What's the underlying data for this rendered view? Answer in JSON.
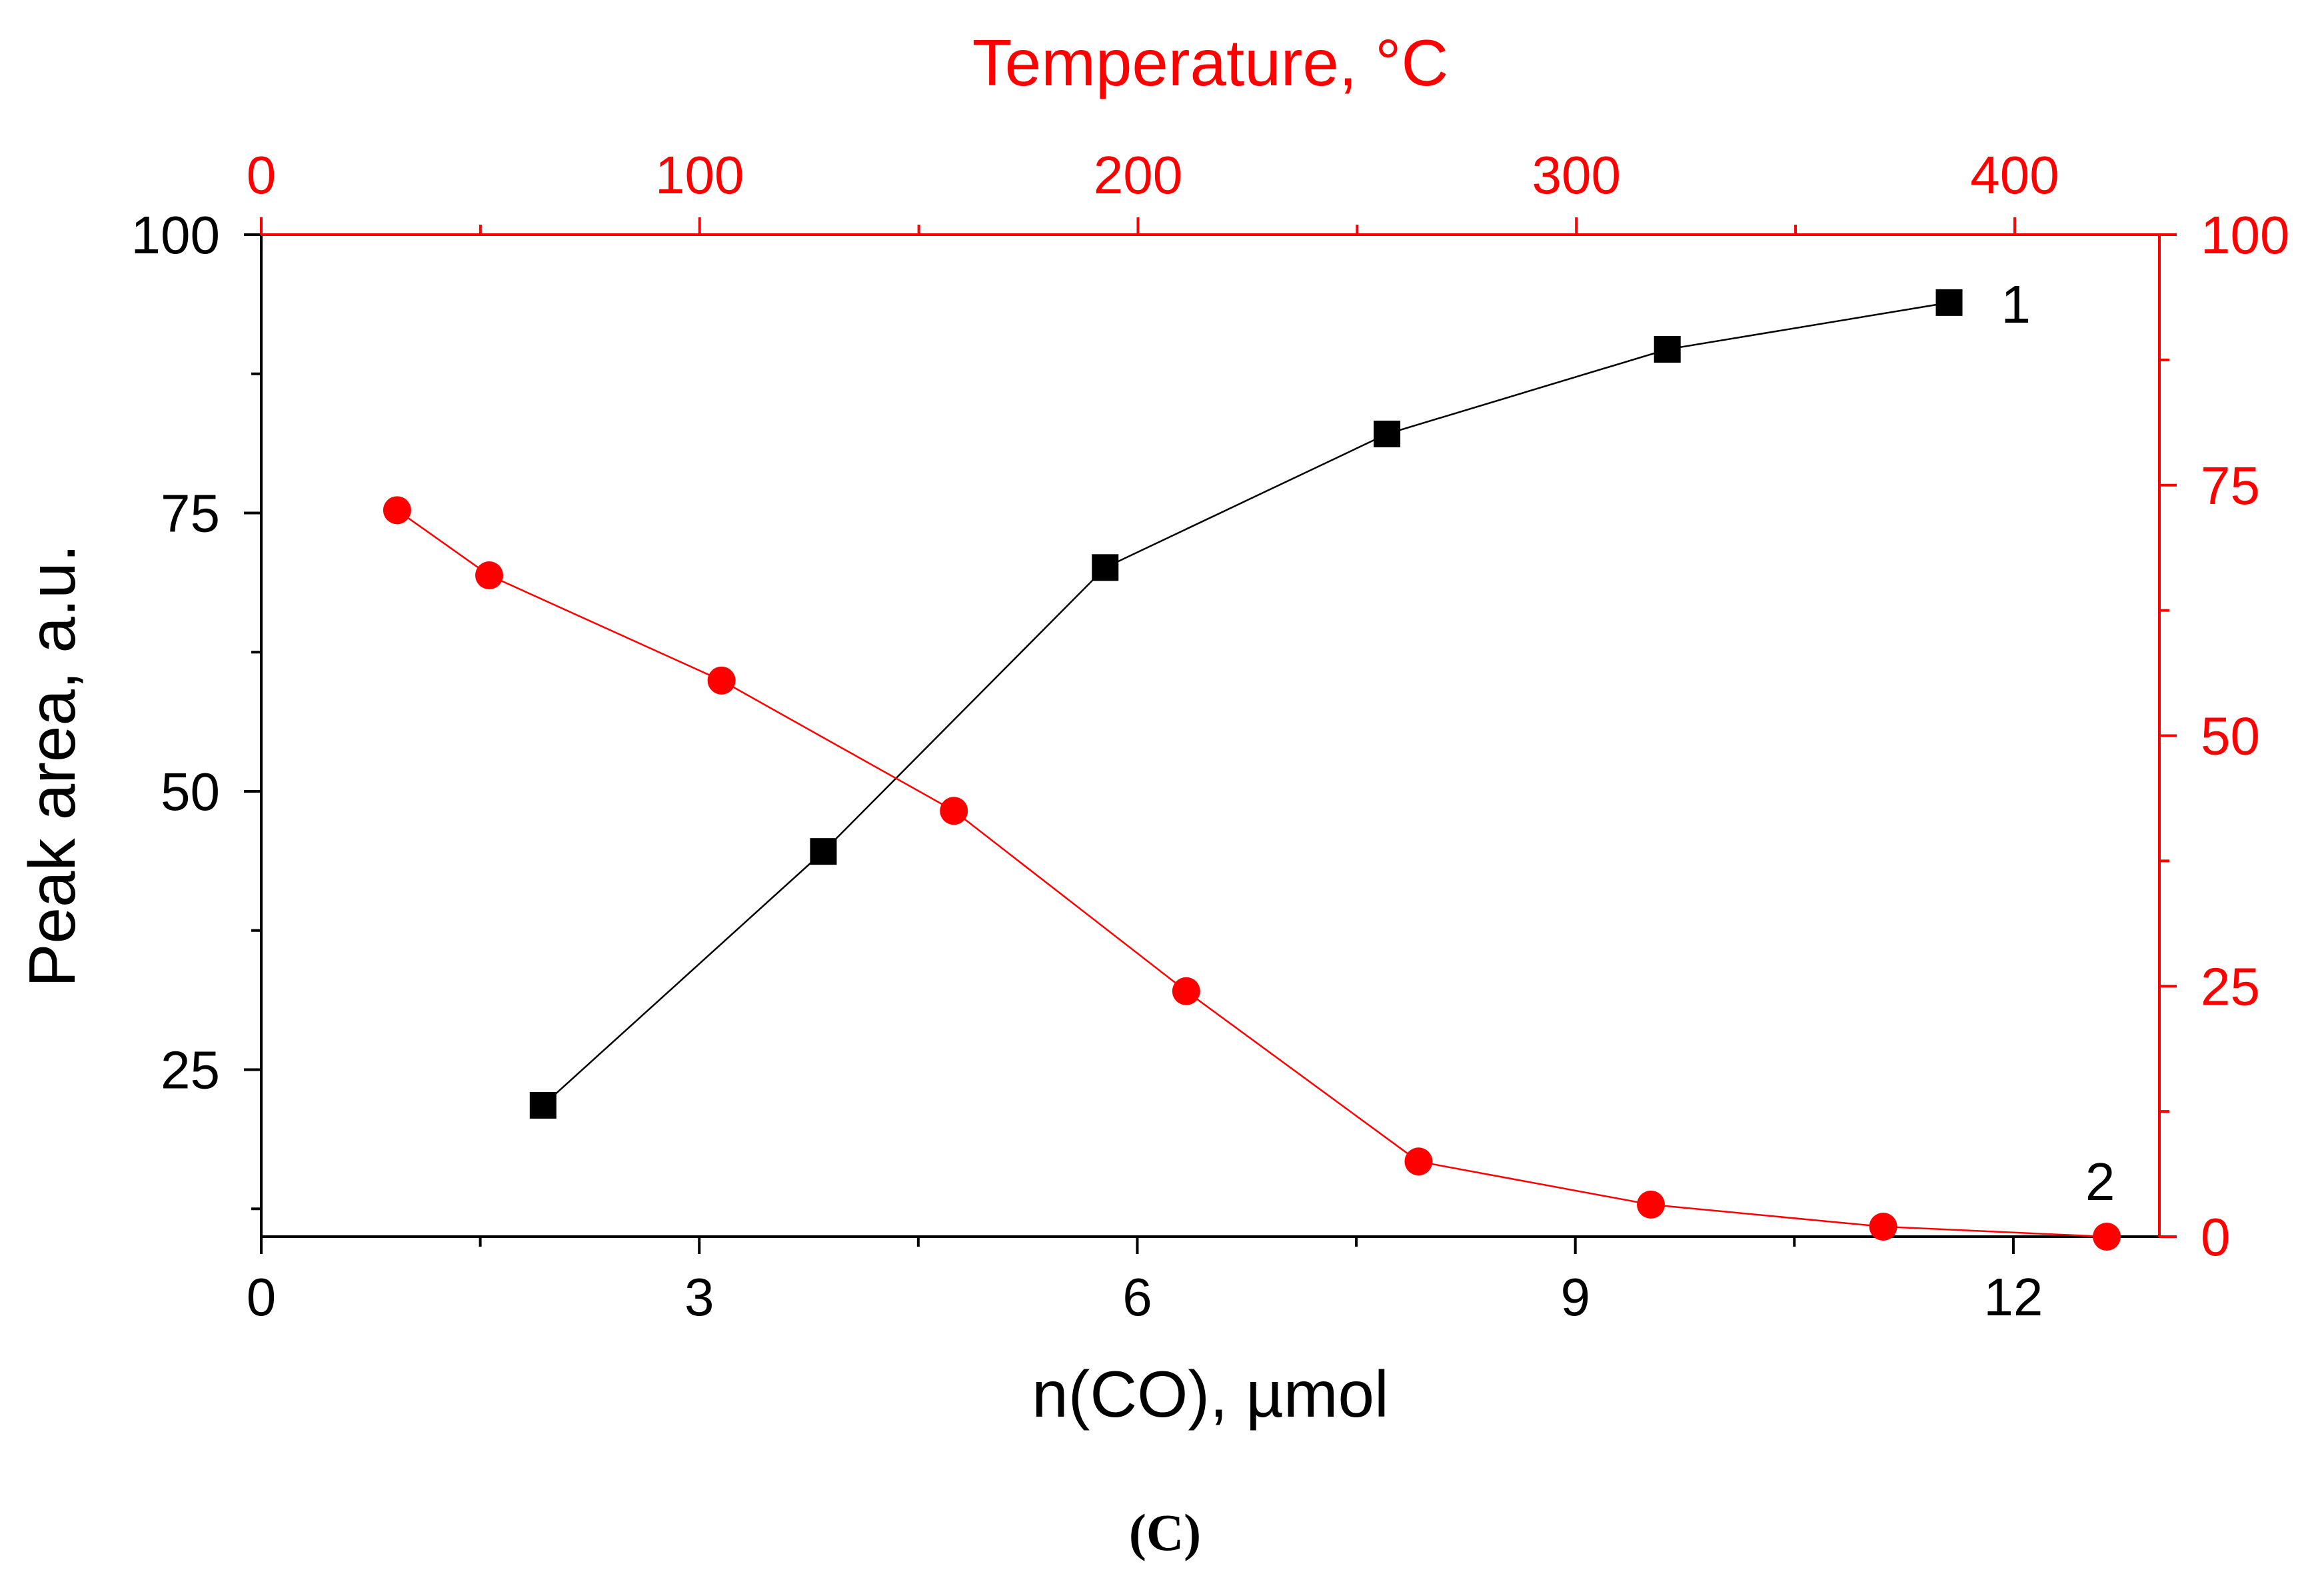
{
  "chart_data": {
    "type": "scatter",
    "caption": "(C)",
    "xlabel": "n(CO), µmol",
    "xlim": [
      0,
      13
    ],
    "xticks": [
      0,
      3,
      6,
      9,
      12
    ],
    "xtick_labels": [
      "0",
      "3",
      "6",
      "9",
      "12"
    ],
    "x_minor_step": 1.5,
    "ylabel": "Peak area, a.u.",
    "ylim": [
      10,
      100
    ],
    "yticks": [
      25,
      50,
      75,
      100
    ],
    "ytick_labels": [
      "25",
      "50",
      "75",
      "100"
    ],
    "y_minor_step": 12.5,
    "top_xlabel": "Temperature, °C",
    "top_xlim": [
      0,
      433
    ],
    "top_xticks": [
      0,
      100,
      200,
      300,
      400
    ],
    "top_xtick_labels": [
      "0",
      "100",
      "200",
      "300",
      "400"
    ],
    "top_x_minor_step": 50,
    "right_ylim": [
      0,
      100
    ],
    "right_yticks": [
      0,
      25,
      50,
      75,
      100
    ],
    "right_ytick_labels": [
      "0",
      "25",
      "50",
      "75",
      "100"
    ],
    "right_y_minor_step": 12.5,
    "axis_color": "#000000",
    "secondary_axis_color": "#ff0000",
    "grid": false,
    "series": [
      {
        "name": "1",
        "label": "1",
        "axes": "bottom-left",
        "marker": "square",
        "color": "#000000",
        "x": [
          1.93,
          3.85,
          5.78,
          7.71,
          9.63,
          11.56
        ],
        "y": [
          21.8,
          44.6,
          70.1,
          82.1,
          89.7,
          93.9
        ]
      },
      {
        "name": "2",
        "label": "2",
        "axes": "top-right",
        "marker": "circle",
        "color": "#ff0000",
        "x": [
          31,
          52,
          105,
          158,
          211,
          264,
          317,
          370,
          421
        ],
        "y": [
          72.5,
          66.0,
          55.5,
          42.5,
          24.5,
          7.5,
          3.2,
          1.0,
          0.0
        ]
      }
    ]
  }
}
